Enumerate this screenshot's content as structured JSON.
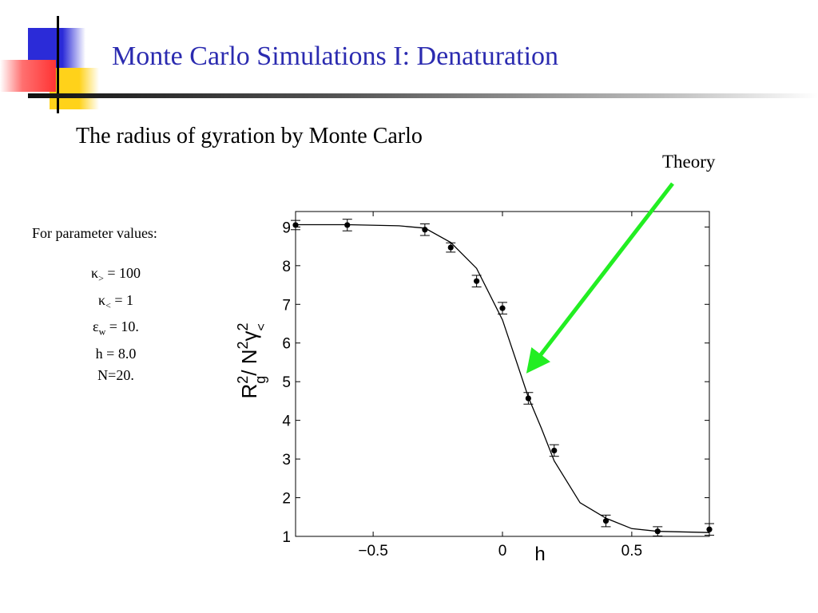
{
  "slide": {
    "title": "Monte Carlo Simulations I: Denaturation",
    "subtitle": "The radius of gyration by Monte Carlo"
  },
  "params": {
    "header": "For parameter values:",
    "kappa_gt": {
      "symbol": "κ",
      "sub": ">",
      "value": " = 100"
    },
    "kappa_lt": {
      "symbol": "κ",
      "sub": "<",
      "value": " = 1"
    },
    "eps_w": {
      "symbol": "ε",
      "sub": "w",
      "value": " = 10."
    },
    "h_line": "h = 8.0",
    "n_line": "N=20."
  },
  "annotation": {
    "label": "Theory",
    "arrow_color": "#22ee22"
  },
  "colors": {
    "title": "#2b2bb0",
    "deco_blue": "#2b2bd8",
    "deco_yellow": "#ffd21a",
    "deco_red": "#ff3333"
  },
  "chart_data": {
    "type": "scatter",
    "xlabel": "h",
    "ylabel": {
      "main": "R",
      "sup1": "2",
      "sub1": "g",
      "mid": "/ N",
      "sup2": "2",
      "greek": "γ",
      "sup3": "2",
      "sub3": "<"
    },
    "xlim": [
      -0.8,
      0.8
    ],
    "ylim": [
      1,
      9.4
    ],
    "xticks": [
      -0.5,
      0,
      0.5
    ],
    "xtick_labels": [
      "−0.5",
      "0",
      "0.5"
    ],
    "yticks": [
      1,
      2,
      3,
      4,
      5,
      6,
      7,
      8,
      9
    ],
    "grid": false,
    "series": [
      {
        "kind": "monte-carlo-points",
        "x": [
          -0.8,
          -0.6,
          -0.3,
          -0.2,
          -0.1,
          0.0,
          0.1,
          0.2,
          0.4,
          0.6,
          0.8
        ],
        "y": [
          9.05,
          9.05,
          8.93,
          8.47,
          7.6,
          6.9,
          4.57,
          3.22,
          1.4,
          1.13,
          1.18
        ],
        "err": [
          0.12,
          0.15,
          0.15,
          0.12,
          0.15,
          0.15,
          0.15,
          0.15,
          0.15,
          0.12,
          0.15
        ]
      },
      {
        "kind": "theory-curve",
        "x": [
          -0.8,
          -0.6,
          -0.4,
          -0.3,
          -0.2,
          -0.1,
          0.0,
          0.05,
          0.1,
          0.15,
          0.2,
          0.3,
          0.4,
          0.5,
          0.6,
          0.8
        ],
        "y": [
          9.06,
          9.06,
          9.03,
          8.97,
          8.6,
          7.93,
          6.6,
          5.6,
          4.6,
          3.8,
          2.95,
          1.87,
          1.47,
          1.2,
          1.13,
          1.1
        ]
      }
    ]
  }
}
